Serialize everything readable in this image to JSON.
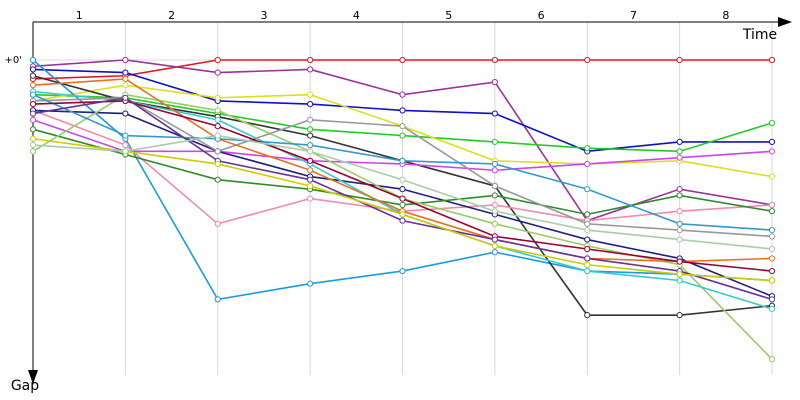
{
  "chart_data": {
    "type": "line",
    "x_label": "Time",
    "y_label": "Gap",
    "x": [
      0,
      1,
      2,
      3,
      4,
      5,
      6,
      7,
      8
    ],
    "xlim": [
      0,
      8
    ],
    "xticks": [
      {
        "value": 0.5,
        "label": "1"
      },
      {
        "value": 1.5,
        "label": "2"
      },
      {
        "value": 2.5,
        "label": "3"
      },
      {
        "value": 3.5,
        "label": "4"
      },
      {
        "value": 4.5,
        "label": "5"
      },
      {
        "value": 5.5,
        "label": "6"
      },
      {
        "value": 6.5,
        "label": "7"
      },
      {
        "value": 7.5,
        "label": "8"
      }
    ],
    "ylim": [
      0,
      100
    ],
    "yticks": [
      {
        "value": 0,
        "label": "+0'"
      }
    ],
    "grid": true,
    "series": [
      {
        "color": "#e8141c",
        "values": [
          6,
          5,
          0,
          0,
          0,
          0,
          0,
          0,
          0
        ]
      },
      {
        "color": "#993399",
        "values": [
          2,
          0,
          4,
          3,
          11,
          7,
          51,
          41,
          46
        ]
      },
      {
        "color": "#1010c8",
        "values": [
          3,
          4,
          13,
          14,
          16,
          17,
          29,
          26,
          26
        ]
      },
      {
        "color": "#22cc22",
        "values": [
          11,
          12,
          17,
          22,
          24,
          26,
          28,
          29,
          20
        ]
      },
      {
        "color": "#dddd22",
        "values": [
          13,
          8,
          12,
          11,
          21,
          32,
          33,
          32,
          37
        ]
      },
      {
        "color": "#1a9ae0",
        "values": [
          0,
          25,
          76,
          71,
          67,
          61,
          67,
          68,
          70
        ]
      },
      {
        "color": "#333333",
        "values": [
          5,
          13,
          18,
          24,
          32,
          40,
          81,
          81,
          78
        ]
      },
      {
        "color": "#f08ab0",
        "values": [
          16,
          27,
          52,
          44,
          48,
          46,
          51,
          48,
          46
        ]
      },
      {
        "color": "#cc44ee",
        "values": [
          19,
          29,
          29,
          32,
          33,
          35,
          33,
          31,
          29
        ]
      },
      {
        "color": "#202080",
        "values": [
          16,
          17,
          29,
          37,
          41,
          49,
          57,
          63,
          75
        ]
      },
      {
        "color": "#2e8b2e",
        "values": [
          22,
          30,
          38,
          41,
          46,
          43,
          49,
          43,
          48
        ]
      },
      {
        "color": "#99cc66",
        "values": [
          29,
          11,
          16,
          29,
          44,
          52,
          59,
          65,
          95
        ]
      },
      {
        "color": "#33cccc",
        "values": [
          10,
          13,
          19,
          33,
          49,
          59,
          67,
          70,
          79
        ]
      },
      {
        "color": "#999999",
        "values": [
          13,
          12,
          29,
          19,
          21,
          40,
          52,
          54,
          56
        ]
      },
      {
        "color": "#e87020",
        "values": [
          8,
          6,
          25,
          35,
          48,
          57,
          63,
          64,
          63
        ]
      },
      {
        "color": "#3399cc",
        "values": [
          11,
          24,
          25,
          27,
          32,
          33,
          41,
          52,
          54
        ]
      },
      {
        "color": "#990033",
        "values": [
          14,
          13,
          21,
          32,
          44,
          56,
          60,
          64,
          67
        ]
      },
      {
        "color": "#663399",
        "values": [
          17,
          12,
          32,
          38,
          51,
          57,
          63,
          67,
          76
        ]
      },
      {
        "color": "#cccc00",
        "values": [
          25,
          29,
          33,
          40,
          49,
          59,
          65,
          68,
          70
        ]
      },
      {
        "color": "#aaccaa",
        "values": [
          27,
          29,
          24,
          29,
          38,
          48,
          54,
          57,
          60
        ]
      }
    ]
  }
}
